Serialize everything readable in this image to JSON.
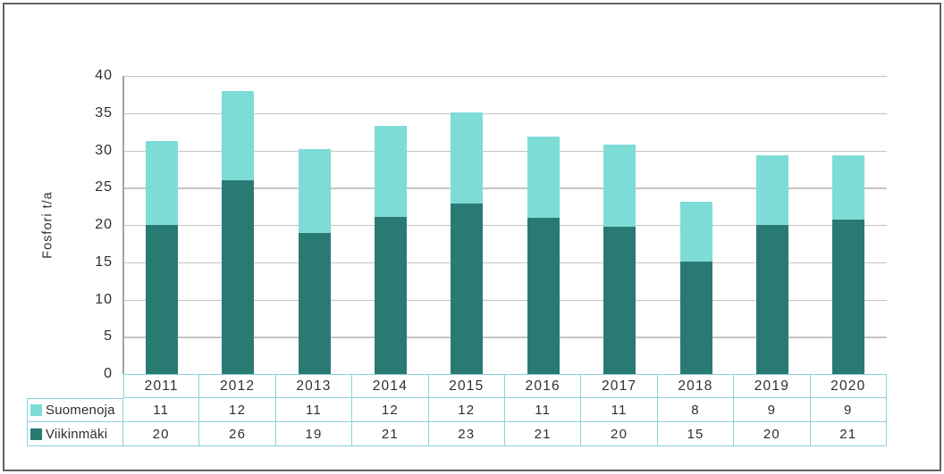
{
  "chart_data": {
    "type": "bar",
    "stacked": true,
    "title": "",
    "ylabel": "Fosfori t/a",
    "ylim": [
      0,
      40
    ],
    "yticks": [
      0,
      5,
      10,
      15,
      20,
      25,
      30,
      35,
      40
    ],
    "grid": true,
    "legend_position": "data-table-left-labels",
    "categories": [
      "2011",
      "2012",
      "2013",
      "2014",
      "2015",
      "2016",
      "2017",
      "2018",
      "2019",
      "2020"
    ],
    "series": [
      {
        "name": "Suomenoja",
        "color": "#7edcd6",
        "values": [
          11,
          12,
          11,
          12,
          12,
          11,
          11,
          8,
          9,
          9
        ],
        "values_precise": [
          11.2,
          12.0,
          11.3,
          12.2,
          12.2,
          10.9,
          11.0,
          8.0,
          9.4,
          8.6
        ]
      },
      {
        "name": "Viikinmäki",
        "color": "#2a7a74",
        "values": [
          20,
          26,
          19,
          21,
          23,
          21,
          20,
          15,
          20,
          21
        ],
        "values_precise": [
          20.0,
          26.0,
          18.9,
          21.1,
          22.9,
          21.0,
          19.8,
          15.1,
          20.0,
          20.7
        ]
      }
    ],
    "stack_bottom_to_top": [
      "Viikinmäki",
      "Suomenoja"
    ]
  },
  "colors": {
    "background": "#ffffff",
    "frame_border": "#626266",
    "gridline": "#c4c4c4",
    "axis_line": "#a3a3a3",
    "table_border": "#8bd2dc",
    "text": "#2f2f2f"
  }
}
